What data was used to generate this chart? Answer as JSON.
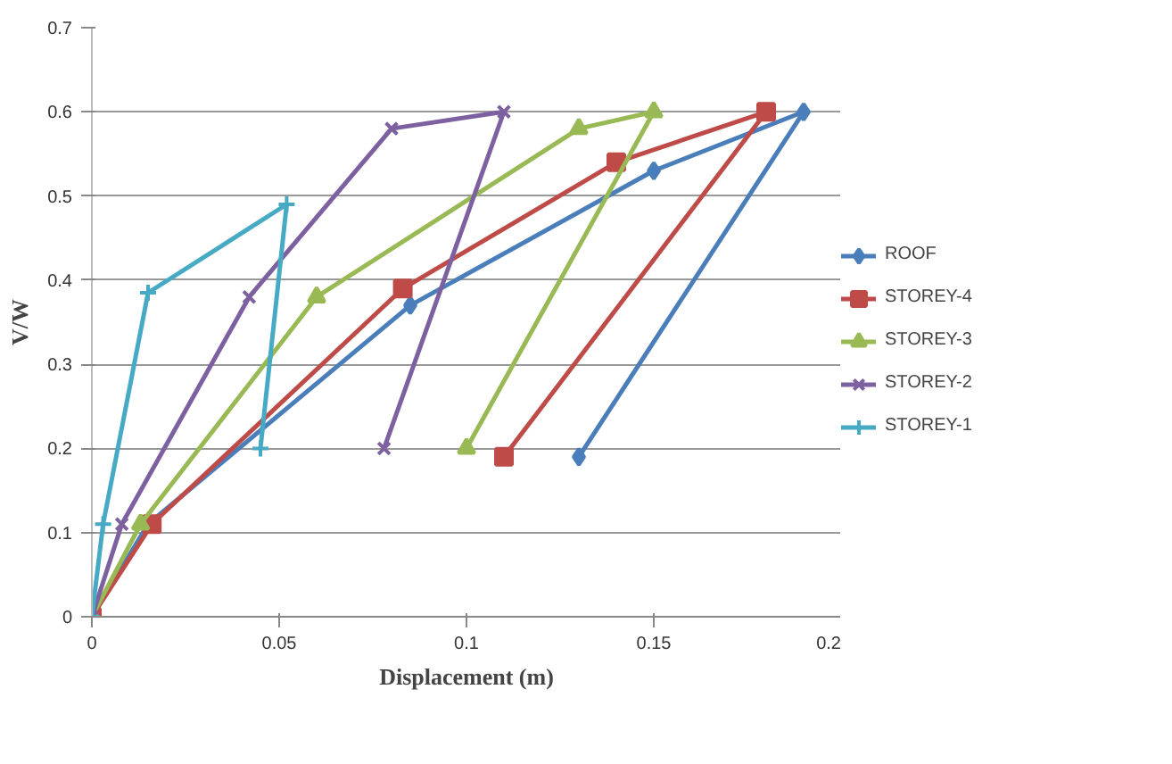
{
  "chart_data": {
    "type": "line",
    "xlabel": "Displacement (m)",
    "ylabel": "V/W",
    "xlim": [
      0,
      0.2
    ],
    "ylim": [
      0,
      0.7
    ],
    "xticks": [
      0,
      0.05,
      0.1,
      0.15,
      0.2
    ],
    "yticks": [
      0,
      0.1,
      0.2,
      0.3,
      0.4,
      0.5,
      0.6,
      0.7
    ],
    "grid": "y",
    "legend": "right",
    "series": [
      {
        "name": "ROOF",
        "color": "#4a7ebb",
        "marker": "diamond",
        "x": [
          0,
          0.015,
          0.085,
          0.15,
          0.19,
          0.13
        ],
        "values": [
          0,
          0.11,
          0.37,
          0.53,
          0.6,
          0.19
        ]
      },
      {
        "name": "STOREY-4",
        "color": "#be4b48",
        "marker": "square",
        "x": [
          0,
          0.016,
          0.083,
          0.14,
          0.18,
          0.11
        ],
        "values": [
          0,
          0.11,
          0.39,
          0.54,
          0.6,
          0.19
        ]
      },
      {
        "name": "STOREY-3",
        "color": "#98b954",
        "marker": "triangle",
        "x": [
          0,
          0.013,
          0.06,
          0.13,
          0.15,
          0.1
        ],
        "values": [
          0,
          0.11,
          0.38,
          0.58,
          0.6,
          0.2
        ]
      },
      {
        "name": "STOREY-2",
        "color": "#7d60a0",
        "marker": "cross",
        "x": [
          0,
          0.008,
          0.042,
          0.08,
          0.11,
          0.078
        ],
        "values": [
          0,
          0.11,
          0.38,
          0.58,
          0.6,
          0.2
        ]
      },
      {
        "name": "STOREY-1",
        "color": "#46aac5",
        "marker": "plus",
        "x": [
          0,
          0.003,
          0.015,
          0.052,
          0.045
        ],
        "values": [
          0,
          0.11,
          0.385,
          0.49,
          0.2
        ]
      }
    ]
  }
}
